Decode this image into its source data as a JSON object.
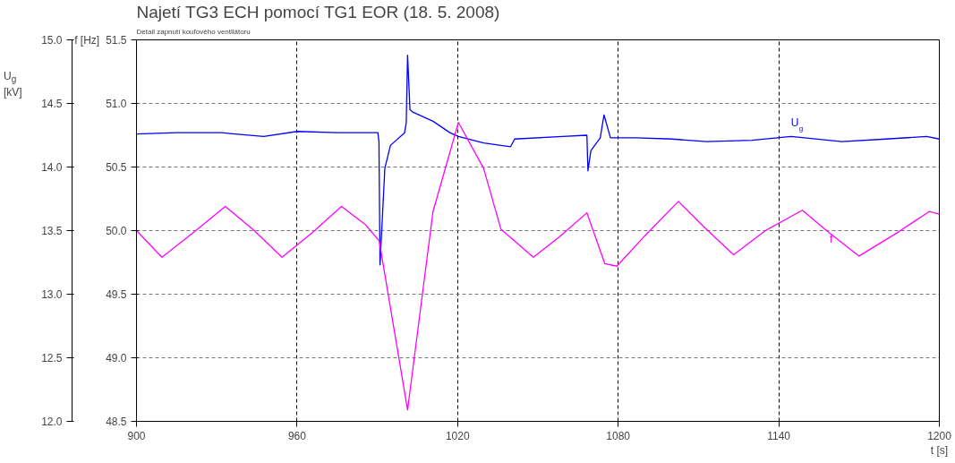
{
  "chart_data": {
    "type": "line",
    "title": "Najetí TG3 ECH pomocí TG1 EOR (18. 5. 2008)",
    "subtitle": "Detail zapnutí kouľového ventilátoru",
    "xlabel": "t [s]",
    "ylabel": "U$_{g}$ [kV]",
    "y2label": "f [Hz]",
    "xlim": [
      900,
      1200
    ],
    "xticks": [
      900,
      960,
      1020,
      1080,
      1140,
      1200
    ],
    "ylim": [
      12.0,
      15.0
    ],
    "yticks": [
      {
        "value": 12,
        "label": "12.0"
      },
      {
        "value": 12.5,
        "label": "12.5"
      },
      {
        "value": 13,
        "label": "13.0"
      },
      {
        "value": 13.5,
        "label": "13.5"
      },
      {
        "value": 14,
        "label": "14.0"
      },
      {
        "value": 14.5,
        "label": "14.5"
      },
      {
        "value": 15,
        "label": "15.0"
      }
    ],
    "y2lim": [
      48.5,
      51.5
    ],
    "y2ticks": [
      {
        "value": 48.5,
        "label": "48.5"
      },
      {
        "value": 49,
        "label": "49.0"
      },
      {
        "value": 49.5,
        "label": "49.5"
      },
      {
        "value": 50,
        "label": "50.0"
      },
      {
        "value": 50.5,
        "label": "50.5"
      },
      {
        "value": 51,
        "label": "51.0"
      },
      {
        "value": 51.5,
        "label": "51.5"
      }
    ],
    "grid": true,
    "legend": false,
    "line_style": "solid",
    "marker": "none",
    "series": [
      {
        "name": "U$_{g}$",
        "color": "#0000ff",
        "x": [
          900,
          915,
          931.6,
          947.5,
          960.1,
          975,
          990.2,
          990.6,
          991.0,
          992.8,
          994.9,
          1000.2,
          1000.8,
          1001.3,
          1002.2,
          1003.4,
          1010.8,
          1017.1,
          1020.3,
          1029.7,
          1039.8,
          1041.3,
          1059.2,
          1068.3,
          1068.7,
          1069.8,
          1073.3,
          1074.7,
          1077.1,
          1086.7,
          1100,
          1113,
          1130,
          1144.6,
          1163.6,
          1180,
          1195.3,
          1200
        ],
        "values": [
          14.26,
          14.27,
          14.27,
          14.24,
          14.28,
          14.27,
          14.27,
          14.2,
          13.23,
          13.99,
          14.17,
          14.27,
          14.35,
          14.88,
          14.45,
          14.43,
          14.36,
          14.27,
          14.24,
          14.19,
          14.16,
          14.22,
          14.24,
          14.25,
          13.97,
          14.13,
          14.23,
          14.41,
          14.23,
          14.23,
          14.22,
          14.2,
          14.21,
          14.24,
          14.2,
          14.22,
          14.24,
          14.22
        ]
      },
      {
        "name": "f",
        "color": "#ff00ff",
        "x": [
          900,
          909.5,
          921,
          933.2,
          944,
          954.4,
          966,
          976.6,
          985.4,
          990.7,
          1001.3,
          1010.8,
          1020.3,
          1029.7,
          1036.2,
          1048.3,
          1058,
          1068.3,
          1075,
          1079.5,
          1090,
          1102.5,
          1112,
          1123.1,
          1135,
          1148.8,
          1159,
          1170,
          1184,
          1196.2,
          1200
        ],
        "values": [
          50.0,
          49.79,
          49.98,
          50.19,
          50.0,
          49.79,
          49.99,
          50.19,
          50.05,
          49.92,
          48.59,
          50.15,
          50.85,
          50.49,
          50.01,
          49.79,
          49.95,
          50.14,
          49.74,
          49.72,
          49.96,
          50.23,
          50.03,
          49.81,
          50.0,
          50.16,
          49.98,
          49.8,
          49.98,
          50.15,
          50.13
        ],
        "axis": "y2"
      }
    ]
  }
}
